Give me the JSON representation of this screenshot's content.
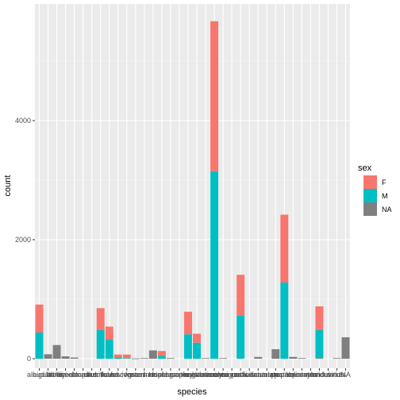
{
  "chart_data": {
    "type": "bar",
    "stacked": true,
    "xlabel": "species",
    "ylabel": "count",
    "ylim": [
      0,
      5800
    ],
    "yticks": [
      0,
      2000,
      4000
    ],
    "grid": true,
    "legend": {
      "title": "sex",
      "position": "right"
    },
    "categories": [
      "albigula",
      "audubonii",
      "baileyi",
      "bilineata",
      "brunneicapillus",
      "chlorurus",
      "clarki",
      "eremicus",
      "flavus",
      "fulvescens",
      "fulviventer",
      "fuscus",
      "gramineus",
      "harrisi",
      "hispidus",
      "leucogaster",
      "leucophrys",
      "maniculatus",
      "megalotis",
      "melanocorys",
      "merriami",
      "montanus",
      "ochrognathus",
      "ordii",
      "penicillatus",
      "savannarum",
      "scutalatus",
      "sp.",
      "spectabilis",
      "spilosoma",
      "squamata",
      "taylori",
      "torridus",
      "undulatus",
      "viridis",
      "NA"
    ],
    "series": [
      {
        "name": "F",
        "color": "#F8766D",
        "values": [
          470,
          0,
          0,
          0,
          0,
          0,
          0,
          370,
          220,
          50,
          60,
          0,
          0,
          0,
          80,
          0,
          0,
          380,
          150,
          0,
          2520,
          0,
          0,
          690,
          0,
          0,
          0,
          0,
          1140,
          0,
          0,
          0,
          400,
          0,
          0,
          0
        ]
      },
      {
        "name": "M",
        "color": "#00BFC4",
        "values": [
          440,
          0,
          0,
          0,
          0,
          0,
          0,
          480,
          320,
          20,
          10,
          0,
          0,
          0,
          50,
          0,
          0,
          410,
          270,
          0,
          3150,
          0,
          0,
          720,
          0,
          0,
          0,
          0,
          1280,
          0,
          0,
          0,
          470,
          0,
          0,
          0
        ]
      },
      {
        "name": "NA",
        "color": "#7F7F7F",
        "values": [
          0,
          75,
          230,
          40,
          20,
          0,
          0,
          0,
          0,
          0,
          0,
          5,
          10,
          140,
          0,
          10,
          0,
          0,
          0,
          10,
          0,
          10,
          0,
          0,
          0,
          30,
          0,
          160,
          0,
          30,
          10,
          0,
          10,
          0,
          10,
          360
        ]
      }
    ]
  }
}
